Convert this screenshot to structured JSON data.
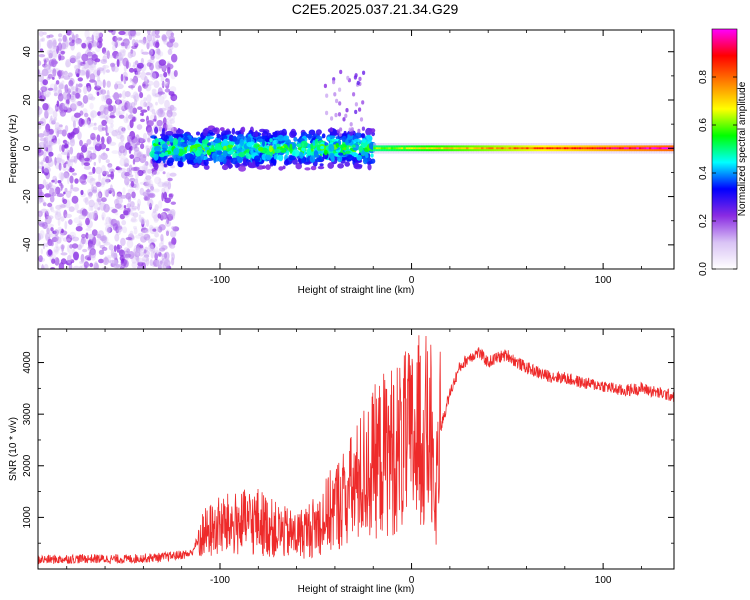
{
  "title": "C2E5.2025.037.21.34.G29",
  "chart_data": [
    {
      "type": "heatmap",
      "name": "spectrogram",
      "xlabel": "Height of straight line (km)",
      "ylabel": "Frequency (Hz)",
      "xlim": [
        -195,
        137
      ],
      "ylim": [
        -50,
        49
      ],
      "x_ticks": [
        -100,
        0,
        100
      ],
      "y_ticks": [
        -40,
        -20,
        0,
        20,
        40
      ],
      "colorbar": {
        "label": "Normalized spectral amplitude",
        "range": [
          0.0,
          1.0
        ],
        "ticks": [
          0.0,
          0.2,
          0.4,
          0.6,
          0.8
        ],
        "colormap": [
          "#ffffff",
          "#d9c3f5",
          "#8a2be2",
          "#0000ff",
          "#00ffff",
          "#00ff00",
          "#ffff00",
          "#ff8000",
          "#ff0000",
          "#ff00ff"
        ]
      },
      "regions": [
        {
          "x_range": [
            -195,
            -123
          ],
          "freq_range": [
            -50,
            49
          ],
          "amplitude": [
            0.0,
            0.3
          ],
          "description": "broadband noise"
        },
        {
          "x_range": [
            -135,
            -20
          ],
          "freq_range": [
            -8,
            10
          ],
          "amplitude": [
            0.2,
            0.6
          ],
          "description": "signal band"
        },
        {
          "x_range": [
            -20,
            137
          ],
          "freq_range": [
            -1,
            1
          ],
          "amplitude": [
            0.6,
            1.0
          ],
          "description": "narrow carrier line"
        }
      ]
    },
    {
      "type": "line",
      "name": "snr",
      "xlabel": "Height of straight line (km)",
      "ylabel": "SNR (10 * v/v)",
      "xlim": [
        -195,
        137
      ],
      "ylim": [
        0,
        4650
      ],
      "x_ticks": [
        -100,
        0,
        100
      ],
      "y_ticks": [
        1000,
        2000,
        3000,
        4000
      ],
      "color": "#ee2a2a",
      "series": [
        {
          "name": "SNR",
          "x": [
            -195,
            -170,
            -150,
            -130,
            -115,
            -110,
            -100,
            -90,
            -80,
            -70,
            -60,
            -50,
            -45,
            -40,
            -35,
            -30,
            -25,
            -20,
            -15,
            -10,
            -5,
            0,
            5,
            10,
            12,
            15,
            20,
            25,
            30,
            35,
            40,
            45,
            50,
            55,
            60,
            70,
            80,
            90,
            100,
            110,
            120,
            130,
            137
          ],
          "y": [
            180,
            200,
            190,
            230,
            300,
            700,
            900,
            950,
            1000,
            800,
            700,
            900,
            1100,
            1300,
            1500,
            1700,
            2000,
            2200,
            2400,
            2500,
            2600,
            2700,
            2900,
            2800,
            1100,
            2700,
            3400,
            3900,
            4100,
            4200,
            4000,
            4100,
            4150,
            4000,
            3900,
            3750,
            3700,
            3600,
            3550,
            3450,
            3500,
            3400,
            3350
          ]
        }
      ]
    }
  ]
}
